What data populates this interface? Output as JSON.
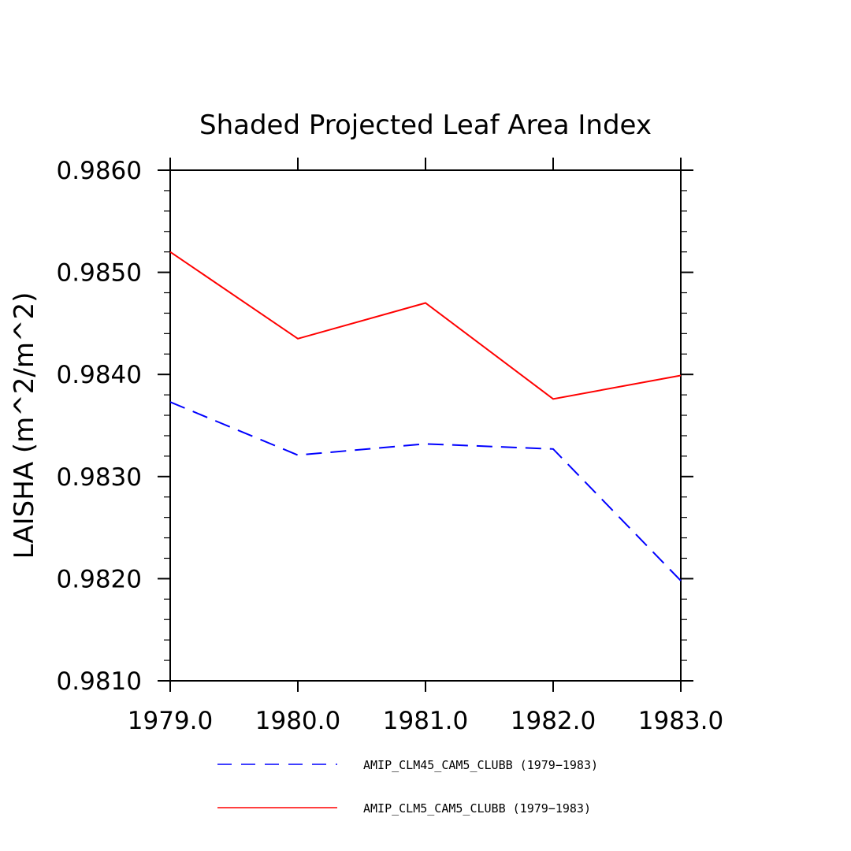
{
  "chart_data": {
    "type": "line",
    "title": "Shaded Projected Leaf Area Index",
    "xlabel": "",
    "ylabel": "LAISHA   (m^2/m^2)",
    "xlim": [
      1979.0,
      1983.0
    ],
    "ylim": [
      0.981,
      0.986
    ],
    "x": [
      1979.0,
      1980.0,
      1981.0,
      1982.0,
      1983.0
    ],
    "x_tick_labels": [
      "1979.0",
      "1980.0",
      "1981.0",
      "1982.0",
      "1983.0"
    ],
    "y_ticks": [
      0.981,
      0.982,
      0.983,
      0.984,
      0.985,
      0.986
    ],
    "y_tick_labels": [
      "0.9810",
      "0.9820",
      "0.9830",
      "0.9840",
      "0.9850",
      "0.9860"
    ],
    "series": [
      {
        "name": "AMIP_CLM45_CAM5_CLUBB (1979−1983)",
        "color": "#0000ff",
        "dash": "dashed",
        "values": [
          0.98373,
          0.98321,
          0.98332,
          0.98327,
          0.98198
        ]
      },
      {
        "name": "AMIP_CLM5_CAM5_CLUBB (1979−1983)",
        "color": "#ff0000",
        "dash": "solid",
        "values": [
          0.9852,
          0.98435,
          0.9847,
          0.98376,
          0.98399
        ]
      }
    ],
    "grid": false,
    "legend_position": "bottom"
  }
}
